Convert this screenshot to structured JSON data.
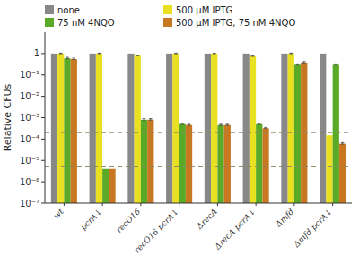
{
  "chart_data": {
    "type": "bar",
    "log": "y",
    "grid": false,
    "legend": "top",
    "ylabel": "Relative CFUs",
    "categories": [
      "wt",
      "pcrA↓",
      "recO16",
      "recO16 pcrA↓",
      "ΔrecA",
      "ΔrecA pcrA↓",
      "Δmfd",
      "Δmfd pcrA↓"
    ],
    "ylim": [
      1e-07,
      10
    ],
    "yticks": [
      {
        "value": 1e-07,
        "label": "10⁻⁷"
      },
      {
        "value": 1e-06,
        "label": "10⁻⁶"
      },
      {
        "value": 1e-05,
        "label": "10⁻⁵"
      },
      {
        "value": 0.0001,
        "label": "10⁻⁴"
      },
      {
        "value": 0.001,
        "label": "10⁻³"
      },
      {
        "value": 0.01,
        "label": "10⁻²"
      },
      {
        "value": 0.1,
        "label": "10⁻¹"
      },
      1
    ],
    "reference_lines": [
      0.0002,
      5e-06
    ],
    "reference_line_color": "#888866",
    "series": [
      {
        "name": "none",
        "color": "#888888",
        "values": [
          1,
          1,
          1,
          1,
          1,
          1,
          1,
          1
        ],
        "errors_minus": [
          0,
          0,
          0,
          0,
          0,
          0,
          0,
          0
        ],
        "errors_plus": [
          0,
          0,
          0,
          0,
          0,
          0,
          0,
          0
        ]
      },
      {
        "name": "500 μM IPTG",
        "color": "#e8e020",
        "values": [
          1,
          1,
          0.8,
          1,
          1,
          0.75,
          1,
          0.00015
        ],
        "errors_minus": [
          0.015,
          0.015,
          0.015,
          0.015,
          0.015,
          0.012,
          0.015,
          0
        ],
        "errors_plus": [
          0.05,
          0.05,
          0.05,
          0.05,
          0.05,
          0.04,
          0.05,
          0
        ]
      },
      {
        "name": "75 nM 4NQO",
        "color": "#5aaa28",
        "values": [
          0.6,
          4e-06,
          0.0008,
          0.0005,
          0.00045,
          0.0005,
          0.3,
          0.3
        ],
        "errors_minus": [
          0.021,
          0,
          3e-05,
          1.5e-05,
          1.2e-05,
          1.5e-05,
          0.009,
          0.009
        ],
        "errors_plus": [
          0.07,
          0,
          0.0001,
          5e-05,
          4e-05,
          5e-05,
          0.03,
          0.03
        ]
      },
      {
        "name": "500 μM IPTG, 75 nM 4NQO",
        "color": "#c87820",
        "values": [
          0.55,
          4e-06,
          0.0008,
          0.00045,
          0.00045,
          0.00032,
          0.38,
          6e-05
        ],
        "errors_minus": [
          0.018,
          0,
          3e-05,
          1.2e-05,
          1.2e-05,
          9e-06,
          0.012,
          2.4e-06
        ],
        "errors_plus": [
          0.06,
          0,
          0.0001,
          4e-05,
          4e-05,
          3e-05,
          0.04,
          8e-06
        ]
      }
    ]
  }
}
